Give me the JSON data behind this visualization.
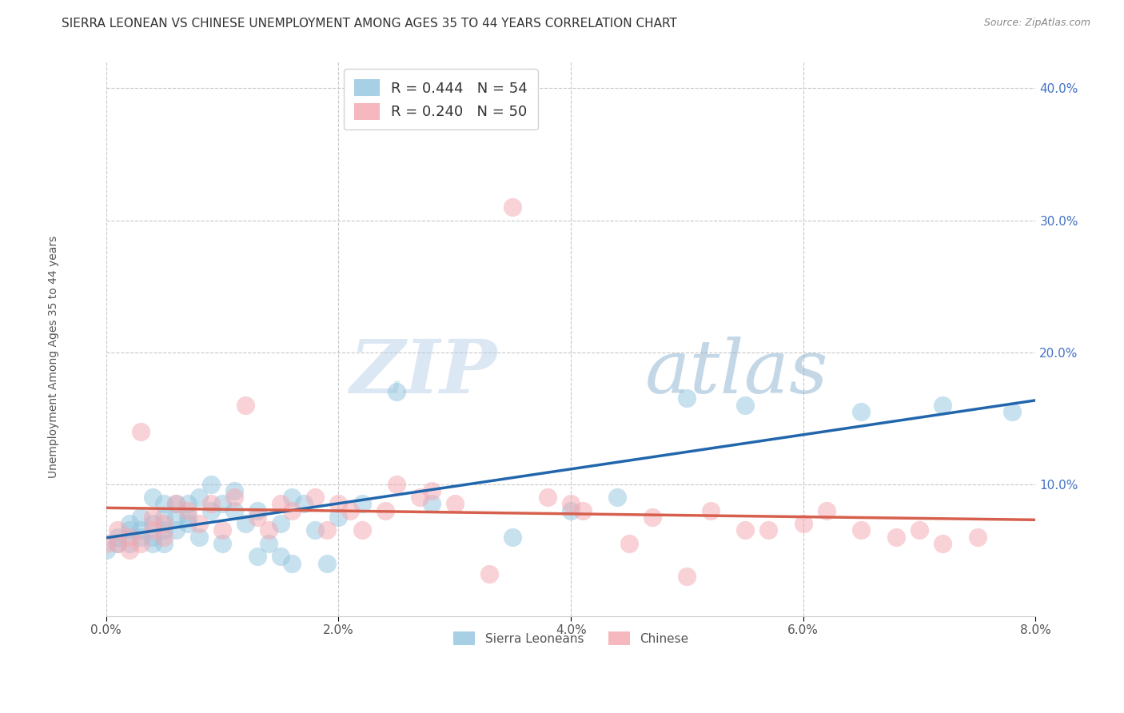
{
  "title": "SIERRA LEONEAN VS CHINESE UNEMPLOYMENT AMONG AGES 35 TO 44 YEARS CORRELATION CHART",
  "source": "Source: ZipAtlas.com",
  "ylabel": "Unemployment Among Ages 35 to 44 years",
  "sierra_R": 0.444,
  "sierra_N": 54,
  "chinese_R": 0.24,
  "chinese_N": 50,
  "sierra_color": "#92c5de",
  "chinese_color": "#f4a6b0",
  "sierra_line_color": "#2166ac",
  "chinese_line_color": "#d6604d",
  "background_color": "#ffffff",
  "grid_color": "#c8c8c8",
  "xlim": [
    0.0,
    0.08
  ],
  "ylim": [
    0.0,
    0.42
  ],
  "yticks": [
    0.1,
    0.2,
    0.3,
    0.4
  ],
  "xticks": [
    0.0,
    0.02,
    0.04,
    0.06,
    0.08
  ],
  "sierra_x": [
    0.0,
    0.001,
    0.001,
    0.002,
    0.002,
    0.002,
    0.003,
    0.003,
    0.003,
    0.004,
    0.004,
    0.004,
    0.004,
    0.005,
    0.005,
    0.005,
    0.005,
    0.006,
    0.006,
    0.006,
    0.007,
    0.007,
    0.007,
    0.008,
    0.008,
    0.009,
    0.009,
    0.01,
    0.01,
    0.011,
    0.011,
    0.012,
    0.013,
    0.013,
    0.014,
    0.015,
    0.015,
    0.016,
    0.016,
    0.017,
    0.018,
    0.019,
    0.02,
    0.022,
    0.025,
    0.028,
    0.035,
    0.04,
    0.044,
    0.05,
    0.055,
    0.065,
    0.072,
    0.078
  ],
  "sierra_y": [
    0.05,
    0.06,
    0.055,
    0.065,
    0.055,
    0.07,
    0.075,
    0.065,
    0.06,
    0.09,
    0.07,
    0.06,
    0.055,
    0.085,
    0.075,
    0.065,
    0.055,
    0.085,
    0.075,
    0.065,
    0.085,
    0.075,
    0.07,
    0.09,
    0.06,
    0.1,
    0.08,
    0.085,
    0.055,
    0.095,
    0.08,
    0.07,
    0.045,
    0.08,
    0.055,
    0.07,
    0.045,
    0.09,
    0.04,
    0.085,
    0.065,
    0.04,
    0.075,
    0.085,
    0.17,
    0.085,
    0.06,
    0.08,
    0.09,
    0.165,
    0.16,
    0.155,
    0.16,
    0.155
  ],
  "chinese_x": [
    0.0,
    0.001,
    0.001,
    0.002,
    0.002,
    0.003,
    0.003,
    0.004,
    0.004,
    0.005,
    0.005,
    0.006,
    0.007,
    0.008,
    0.009,
    0.01,
    0.011,
    0.012,
    0.013,
    0.014,
    0.015,
    0.016,
    0.018,
    0.019,
    0.02,
    0.021,
    0.022,
    0.024,
    0.025,
    0.027,
    0.028,
    0.03,
    0.033,
    0.035,
    0.038,
    0.04,
    0.041,
    0.045,
    0.047,
    0.05,
    0.052,
    0.055,
    0.057,
    0.06,
    0.062,
    0.065,
    0.068,
    0.07,
    0.072,
    0.075
  ],
  "chinese_y": [
    0.055,
    0.065,
    0.055,
    0.06,
    0.05,
    0.14,
    0.055,
    0.075,
    0.065,
    0.07,
    0.06,
    0.085,
    0.08,
    0.07,
    0.085,
    0.065,
    0.09,
    0.16,
    0.075,
    0.065,
    0.085,
    0.08,
    0.09,
    0.065,
    0.085,
    0.08,
    0.065,
    0.08,
    0.1,
    0.09,
    0.095,
    0.085,
    0.032,
    0.31,
    0.09,
    0.085,
    0.08,
    0.055,
    0.075,
    0.03,
    0.08,
    0.065,
    0.065,
    0.07,
    0.08,
    0.065,
    0.06,
    0.065,
    0.055,
    0.06
  ],
  "watermark_zip": "ZIP",
  "watermark_atlas": "atlas",
  "title_fontsize": 11,
  "axis_label_fontsize": 10,
  "tick_fontsize": 11,
  "legend_fontsize": 13
}
